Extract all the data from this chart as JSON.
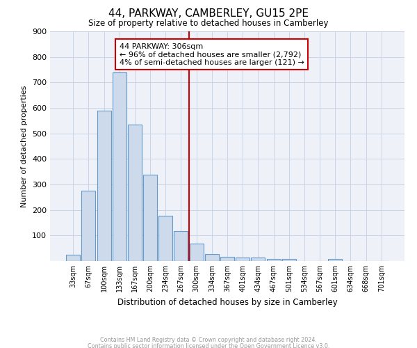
{
  "title": "44, PARKWAY, CAMBERLEY, GU15 2PE",
  "subtitle": "Size of property relative to detached houses in Camberley",
  "xlabel": "Distribution of detached houses by size in Camberley",
  "ylabel": "Number of detached properties",
  "footer_line1": "Contains HM Land Registry data © Crown copyright and database right 2024.",
  "footer_line2": "Contains public sector information licensed under the Open Government Licence v3.0.",
  "bar_labels": [
    "33sqm",
    "67sqm",
    "100sqm",
    "133sqm",
    "167sqm",
    "200sqm",
    "234sqm",
    "267sqm",
    "300sqm",
    "334sqm",
    "367sqm",
    "401sqm",
    "434sqm",
    "467sqm",
    "501sqm",
    "534sqm",
    "567sqm",
    "601sqm",
    "634sqm",
    "668sqm",
    "701sqm"
  ],
  "bar_values": [
    25,
    275,
    590,
    740,
    535,
    338,
    178,
    118,
    68,
    27,
    17,
    15,
    13,
    8,
    7,
    0,
    0,
    7,
    0,
    0,
    0
  ],
  "bar_color": "#ccdaeb",
  "bar_edge_color": "#6699cc",
  "vline_index": 8,
  "vline_color": "#cc0000",
  "annotation_text_title": "44 PARKWAY: 306sqm",
  "annotation_text_line1": "← 96% of detached houses are smaller (2,792)",
  "annotation_text_line2": "4% of semi-detached houses are larger (121) →",
  "annotation_box_color": "#cc0000",
  "ylim": [
    0,
    900
  ],
  "yticks": [
    100,
    200,
    300,
    400,
    500,
    600,
    700,
    800,
    900
  ],
  "grid_color": "#c8d4e4",
  "bg_color": "#eef2f8"
}
